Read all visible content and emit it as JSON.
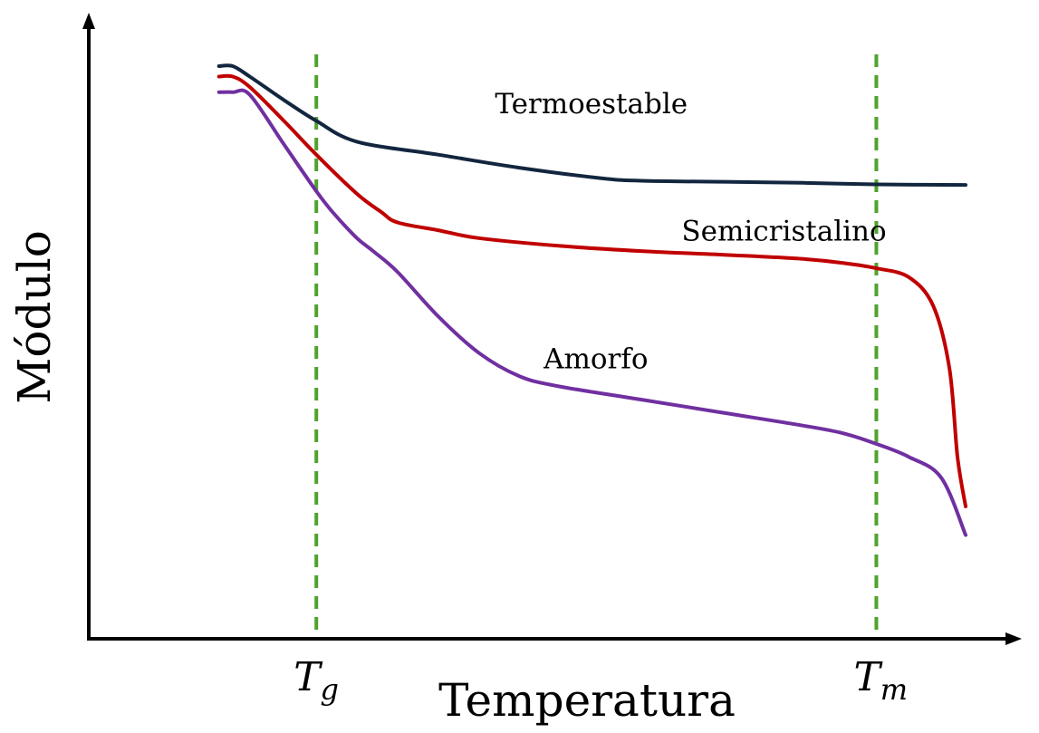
{
  "chart_data": {
    "type": "line",
    "xlabel": "Temperatura",
    "ylabel": "Módulo",
    "xlim": [
      0,
      10
    ],
    "ylim": [
      0,
      10
    ],
    "grid": false,
    "legend": "none",
    "reference_lines": [
      {
        "x": 2.0,
        "label_main": "T",
        "label_sub": "g",
        "color": "#4fa32c"
      },
      {
        "x": 8.9,
        "label_main": "T",
        "label_sub": "m",
        "color": "#4fa32c"
      }
    ],
    "series": [
      {
        "name": "Termoestable",
        "color": "#13263f",
        "label_at": [
          4.2,
          9.1
        ],
        "points": [
          [
            0.8,
            10.0
          ],
          [
            0.97,
            10.0
          ],
          [
            1.18,
            9.8
          ],
          [
            1.6,
            9.35
          ],
          [
            2.0,
            8.95
          ],
          [
            2.5,
            8.55
          ],
          [
            3.5,
            8.3
          ],
          [
            4.5,
            8.05
          ],
          [
            5.5,
            7.85
          ],
          [
            6.0,
            7.8
          ],
          [
            7.0,
            7.78
          ],
          [
            8.0,
            7.76
          ],
          [
            8.9,
            7.73
          ],
          [
            10.0,
            7.72
          ]
        ]
      },
      {
        "name": "Semicristalino",
        "color": "#c00000",
        "label_at": [
          6.5,
          6.65
        ],
        "points": [
          [
            0.8,
            9.8
          ],
          [
            0.97,
            9.8
          ],
          [
            1.18,
            9.6
          ],
          [
            1.6,
            8.95
          ],
          [
            2.0,
            8.3
          ],
          [
            2.5,
            7.55
          ],
          [
            2.8,
            7.2
          ],
          [
            3.0,
            7.0
          ],
          [
            3.5,
            6.85
          ],
          [
            4.0,
            6.7
          ],
          [
            5.0,
            6.55
          ],
          [
            6.0,
            6.45
          ],
          [
            7.0,
            6.38
          ],
          [
            8.0,
            6.3
          ],
          [
            8.5,
            6.22
          ],
          [
            8.9,
            6.12
          ],
          [
            9.3,
            5.95
          ],
          [
            9.6,
            5.4
          ],
          [
            9.8,
            4.2
          ],
          [
            9.9,
            2.5
          ],
          [
            10.0,
            1.55
          ]
        ]
      },
      {
        "name": "Amorfo",
        "color": "#7030a0",
        "label_at": [
          4.8,
          4.2
        ],
        "points": [
          [
            0.8,
            9.5
          ],
          [
            0.97,
            9.5
          ],
          [
            1.18,
            9.45
          ],
          [
            1.6,
            8.5
          ],
          [
            2.0,
            7.6
          ],
          [
            2.2,
            7.2
          ],
          [
            2.5,
            6.7
          ],
          [
            2.7,
            6.45
          ],
          [
            3.0,
            6.05
          ],
          [
            3.5,
            5.2
          ],
          [
            4.0,
            4.5
          ],
          [
            4.5,
            4.05
          ],
          [
            5.0,
            3.85
          ],
          [
            6.0,
            3.6
          ],
          [
            7.0,
            3.35
          ],
          [
            8.0,
            3.1
          ],
          [
            8.5,
            2.95
          ],
          [
            8.9,
            2.75
          ],
          [
            9.3,
            2.5
          ],
          [
            9.7,
            2.1
          ],
          [
            10.0,
            1.0
          ]
        ]
      }
    ]
  }
}
